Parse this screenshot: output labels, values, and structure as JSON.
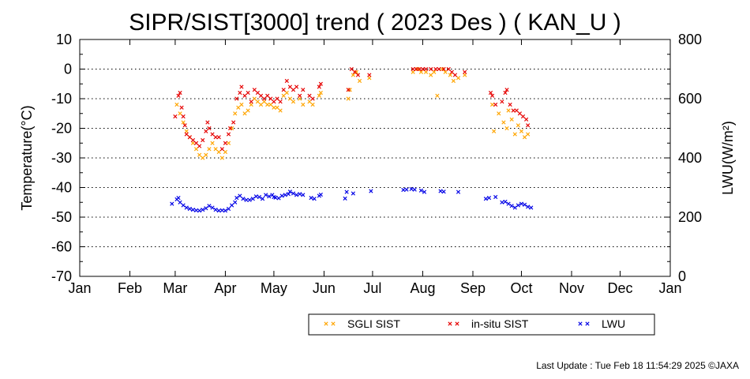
{
  "chart_data": {
    "type": "scatter",
    "title": "SIPR/SIST[3000] trend ( 2023 Des ) ( KAN_U )",
    "ylabel": "Temperature(°C)",
    "y2label": "LWU(W/m²)",
    "ylim": [
      -70,
      10
    ],
    "y2lim": [
      0,
      800
    ],
    "yticks": [
      "10",
      "0",
      "-10",
      "-20",
      "-30",
      "-40",
      "-50",
      "-60",
      "-70"
    ],
    "y2ticks": [
      "800",
      "600",
      "400",
      "200",
      "0"
    ],
    "x_ticks": [
      "Jan",
      "Feb",
      "Mar",
      "Apr",
      "May",
      "Jun",
      "Jul",
      "Aug",
      "Sep",
      "Oct",
      "Nov",
      "Dec",
      "Jan"
    ],
    "x_unit": "day of year",
    "grid": "dotted horizontal",
    "legend_position": "bottom-right",
    "series": [
      {
        "name": "SGLI SIST",
        "color": "#ffa500",
        "axis": "left",
        "points": [
          [
            61,
            -12
          ],
          [
            63,
            -15
          ],
          [
            65,
            -18
          ],
          [
            67,
            -21
          ],
          [
            69,
            -23
          ],
          [
            71,
            -25
          ],
          [
            73,
            -27
          ],
          [
            75,
            -29
          ],
          [
            77,
            -30
          ],
          [
            79,
            -29
          ],
          [
            81,
            -27
          ],
          [
            83,
            -25
          ],
          [
            85,
            -27
          ],
          [
            87,
            -28
          ],
          [
            89,
            -30
          ],
          [
            91,
            -28
          ],
          [
            93,
            -25
          ],
          [
            95,
            -20
          ],
          [
            97,
            -15
          ],
          [
            99,
            -13
          ],
          [
            101,
            -12
          ],
          [
            103,
            -15
          ],
          [
            105,
            -14
          ],
          [
            107,
            -12
          ],
          [
            109,
            -10
          ],
          [
            111,
            -11
          ],
          [
            113,
            -12
          ],
          [
            115,
            -11
          ],
          [
            117,
            -12
          ],
          [
            119,
            -12
          ],
          [
            121,
            -13
          ],
          [
            123,
            -13
          ],
          [
            125,
            -14
          ],
          [
            127,
            -9
          ],
          [
            129,
            -8
          ],
          [
            131,
            -10
          ],
          [
            133,
            -11
          ],
          [
            137,
            -10
          ],
          [
            139,
            -12
          ],
          [
            143,
            -11
          ],
          [
            145,
            -12
          ],
          [
            149,
            -9
          ],
          [
            150,
            -8
          ],
          [
            167,
            -10
          ],
          [
            168,
            -7
          ],
          [
            170,
            -2
          ],
          [
            172,
            -1
          ],
          [
            174,
            -4
          ],
          [
            180,
            -3
          ],
          [
            207,
            -1
          ],
          [
            210,
            0
          ],
          [
            212,
            -1
          ],
          [
            215,
            -1
          ],
          [
            218,
            -2
          ],
          [
            220,
            -1
          ],
          [
            222,
            -9
          ],
          [
            225,
            0
          ],
          [
            227,
            -1
          ],
          [
            230,
            -2
          ],
          [
            232,
            -4
          ],
          [
            235,
            -3
          ],
          [
            239,
            -2
          ],
          [
            256,
            -12
          ],
          [
            257,
            -21
          ],
          [
            260,
            -15
          ],
          [
            263,
            -18
          ],
          [
            265,
            -20
          ],
          [
            266,
            -14
          ],
          [
            268,
            -17
          ],
          [
            270,
            -22
          ],
          [
            272,
            -19
          ],
          [
            274,
            -21
          ],
          [
            276,
            -23
          ],
          [
            278,
            -22
          ]
        ]
      },
      {
        "name": "in-situ SIST",
        "color": "#e60000",
        "axis": "left",
        "points": [
          [
            60,
            -16
          ],
          [
            62,
            -9
          ],
          [
            63,
            -8
          ],
          [
            64,
            -13
          ],
          [
            65,
            -16
          ],
          [
            66,
            -19
          ],
          [
            67,
            -22
          ],
          [
            69,
            -23
          ],
          [
            71,
            -24
          ],
          [
            73,
            -25
          ],
          [
            75,
            -26
          ],
          [
            77,
            -24
          ],
          [
            79,
            -21
          ],
          [
            80,
            -18
          ],
          [
            81,
            -20
          ],
          [
            83,
            -22
          ],
          [
            85,
            -23
          ],
          [
            87,
            -23
          ],
          [
            89,
            -27
          ],
          [
            91,
            -25
          ],
          [
            93,
            -22
          ],
          [
            94,
            -20
          ],
          [
            96,
            -18
          ],
          [
            98,
            -10
          ],
          [
            100,
            -8
          ],
          [
            101,
            -6
          ],
          [
            103,
            -9
          ],
          [
            105,
            -8
          ],
          [
            107,
            -11
          ],
          [
            109,
            -7
          ],
          [
            111,
            -8
          ],
          [
            113,
            -9
          ],
          [
            115,
            -10
          ],
          [
            117,
            -9
          ],
          [
            119,
            -10
          ],
          [
            121,
            -11
          ],
          [
            123,
            -10
          ],
          [
            125,
            -11
          ],
          [
            127,
            -7
          ],
          [
            129,
            -4
          ],
          [
            131,
            -6
          ],
          [
            133,
            -7
          ],
          [
            135,
            -6
          ],
          [
            137,
            -9
          ],
          [
            139,
            -7
          ],
          [
            143,
            -9
          ],
          [
            145,
            -10
          ],
          [
            149,
            -6
          ],
          [
            150,
            -5
          ],
          [
            167,
            -7
          ],
          [
            169,
            0
          ],
          [
            171,
            -1
          ],
          [
            173,
            -2
          ],
          [
            180,
            -2
          ],
          [
            207,
            0
          ],
          [
            209,
            0
          ],
          [
            211,
            0
          ],
          [
            213,
            0
          ],
          [
            215,
            0
          ],
          [
            218,
            0
          ],
          [
            221,
            0
          ],
          [
            223,
            0
          ],
          [
            226,
            0
          ],
          [
            229,
            0
          ],
          [
            231,
            -1
          ],
          [
            233,
            -2
          ],
          [
            239,
            -1
          ],
          [
            255,
            -8
          ],
          [
            256,
            -9
          ],
          [
            258,
            -12
          ],
          [
            262,
            -11
          ],
          [
            264,
            -8
          ],
          [
            265,
            -7
          ],
          [
            267,
            -12
          ],
          [
            269,
            -14
          ],
          [
            271,
            -14
          ],
          [
            273,
            -15
          ],
          [
            275,
            -16
          ],
          [
            277,
            -17
          ],
          [
            278,
            -19
          ]
        ]
      },
      {
        "name": "LWU",
        "color": "#0000e6",
        "axis": "right",
        "points": [
          [
            58,
            245
          ],
          [
            61,
            260
          ],
          [
            62,
            265
          ],
          [
            63,
            250
          ],
          [
            65,
            240
          ],
          [
            67,
            232
          ],
          [
            69,
            228
          ],
          [
            71,
            225
          ],
          [
            73,
            223
          ],
          [
            75,
            222
          ],
          [
            77,
            225
          ],
          [
            79,
            230
          ],
          [
            81,
            238
          ],
          [
            83,
            232
          ],
          [
            85,
            225
          ],
          [
            87,
            222
          ],
          [
            89,
            223
          ],
          [
            91,
            222
          ],
          [
            93,
            228
          ],
          [
            95,
            240
          ],
          [
            97,
            250
          ],
          [
            98,
            265
          ],
          [
            100,
            272
          ],
          [
            102,
            262
          ],
          [
            104,
            258
          ],
          [
            106,
            258
          ],
          [
            108,
            262
          ],
          [
            110,
            270
          ],
          [
            112,
            268
          ],
          [
            114,
            262
          ],
          [
            116,
            275
          ],
          [
            118,
            270
          ],
          [
            120,
            275
          ],
          [
            121,
            268
          ],
          [
            122,
            266
          ],
          [
            124,
            264
          ],
          [
            126,
            272
          ],
          [
            128,
            275
          ],
          [
            130,
            278
          ],
          [
            131,
            286
          ],
          [
            133,
            280
          ],
          [
            135,
            275
          ],
          [
            137,
            278
          ],
          [
            139,
            275
          ],
          [
            144,
            265
          ],
          [
            146,
            262
          ],
          [
            149,
            272
          ],
          [
            150,
            276
          ],
          [
            165,
            263
          ],
          [
            166,
            285
          ],
          [
            170,
            280
          ],
          [
            181,
            288
          ],
          [
            201,
            292
          ],
          [
            203,
            293
          ],
          [
            206,
            295
          ],
          [
            208,
            293
          ],
          [
            212,
            290
          ],
          [
            214,
            285
          ],
          [
            224,
            288
          ],
          [
            226,
            286
          ],
          [
            235,
            285
          ],
          [
            252,
            262
          ],
          [
            254,
            265
          ],
          [
            258,
            268
          ],
          [
            262,
            250
          ],
          [
            264,
            252
          ],
          [
            266,
            245
          ],
          [
            268,
            238
          ],
          [
            270,
            232
          ],
          [
            272,
            240
          ],
          [
            274,
            245
          ],
          [
            276,
            242
          ],
          [
            278,
            235
          ],
          [
            280,
            232
          ]
        ]
      }
    ]
  },
  "footer": {
    "last_update": "Last Update : Tue Feb 18 11:54:29 2025  ©JAXA"
  }
}
